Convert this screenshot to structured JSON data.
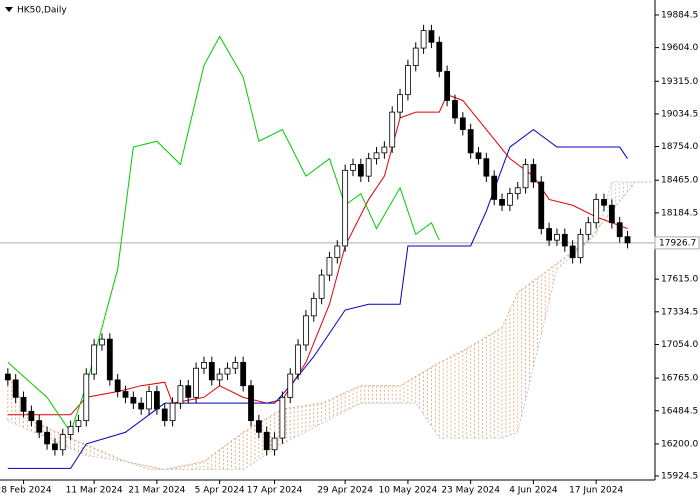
{
  "chart_data": {
    "type": "candlestick",
    "title": "HK50,Daily",
    "ylim": [
      15890,
      20013
    ],
    "yticks": [
      {
        "value": 19884.5,
        "label": "19884.5"
      },
      {
        "value": 19604.0,
        "label": "19604.0"
      },
      {
        "value": 19315.0,
        "label": "19315.0"
      },
      {
        "value": 19034.5,
        "label": "19034.5"
      },
      {
        "value": 18754.0,
        "label": "18754.0"
      },
      {
        "value": 18465.0,
        "label": "18465.0"
      },
      {
        "value": 18184.5,
        "label": "18184.5"
      },
      {
        "value": 17615.0,
        "label": "17615.0"
      },
      {
        "value": 17334.5,
        "label": "17334.5"
      },
      {
        "value": 17054.0,
        "label": "17054.0"
      },
      {
        "value": 16765.0,
        "label": "16765.0"
      },
      {
        "value": 16484.5,
        "label": "16484.5"
      },
      {
        "value": 16200.0,
        "label": "16200.0"
      },
      {
        "value": 15924.5,
        "label": "15924.5"
      }
    ],
    "xlim": [
      -1,
      82.5
    ],
    "xticks": [
      {
        "value": 2,
        "label": "28 Feb 2024"
      },
      {
        "value": 11,
        "label": "11 Mar 2024"
      },
      {
        "value": 19,
        "label": "21 Mar 2024"
      },
      {
        "value": 27,
        "label": "5 Apr 2024"
      },
      {
        "value": 34,
        "label": "17 Apr 2024"
      },
      {
        "value": 43,
        "label": "29 Apr 2024"
      },
      {
        "value": 51,
        "label": "10 May 2024"
      },
      {
        "value": 59,
        "label": "23 May 2024"
      },
      {
        "value": 67,
        "label": "4 Jun 2024"
      },
      {
        "value": 75,
        "label": "17 Jun 2024"
      }
    ],
    "current_price": 17926.7,
    "ohlc": [
      [
        16800,
        16850,
        16700,
        16750
      ],
      [
        16750,
        16800,
        16550,
        16600
      ],
      [
        16600,
        16650,
        16430,
        16480
      ],
      [
        16480,
        16530,
        16350,
        16400
      ],
      [
        16400,
        16450,
        16250,
        16300
      ],
      [
        16300,
        16350,
        16150,
        16200
      ],
      [
        16200,
        16250,
        16100,
        16150
      ],
      [
        16150,
        16330,
        16100,
        16280
      ],
      [
        16280,
        16400,
        16230,
        16350
      ],
      [
        16350,
        16450,
        16300,
        16400
      ],
      [
        16400,
        16850,
        16350,
        16800
      ],
      [
        16800,
        17100,
        16750,
        17050
      ],
      [
        17050,
        17150,
        17000,
        17100
      ],
      [
        17100,
        17150,
        16700,
        16750
      ],
      [
        16750,
        16800,
        16600,
        16650
      ],
      [
        16650,
        16700,
        16550,
        16600
      ],
      [
        16600,
        16650,
        16500,
        16550
      ],
      [
        16550,
        16600,
        16450,
        16500
      ],
      [
        16500,
        16700,
        16450,
        16650
      ],
      [
        16650,
        16700,
        16450,
        16500
      ],
      [
        16500,
        16550,
        16350,
        16400
      ],
      [
        16400,
        16600,
        16350,
        16550
      ],
      [
        16550,
        16750,
        16500,
        16700
      ],
      [
        16700,
        16750,
        16550,
        16600
      ],
      [
        16600,
        16900,
        16550,
        16850
      ],
      [
        16850,
        16950,
        16800,
        16900
      ],
      [
        16900,
        16950,
        16700,
        16750
      ],
      [
        16750,
        16850,
        16700,
        16800
      ],
      [
        16800,
        16900,
        16750,
        16850
      ],
      [
        16850,
        16950,
        16800,
        16900
      ],
      [
        16900,
        16950,
        16650,
        16700
      ],
      [
        16700,
        16750,
        16350,
        16400
      ],
      [
        16400,
        16450,
        16250,
        16300
      ],
      [
        16300,
        16350,
        16100,
        16150
      ],
      [
        16150,
        16300,
        16100,
        16250
      ],
      [
        16250,
        16650,
        16200,
        16600
      ],
      [
        16600,
        16850,
        16550,
        16800
      ],
      [
        16800,
        17100,
        16750,
        17050
      ],
      [
        17050,
        17350,
        17000,
        17300
      ],
      [
        17300,
        17500,
        17250,
        17450
      ],
      [
        17450,
        17700,
        17400,
        17650
      ],
      [
        17650,
        17850,
        17600,
        17800
      ],
      [
        17800,
        17950,
        17750,
        17900
      ],
      [
        17900,
        18600,
        17850,
        18550
      ],
      [
        18550,
        18650,
        18500,
        18600
      ],
      [
        18600,
        18650,
        18450,
        18500
      ],
      [
        18500,
        18700,
        18450,
        18650
      ],
      [
        18650,
        18750,
        18600,
        18700
      ],
      [
        18700,
        18800,
        18650,
        18750
      ],
      [
        18750,
        19100,
        18700,
        19050
      ],
      [
        19050,
        19250,
        19000,
        19200
      ],
      [
        19200,
        19500,
        19150,
        19450
      ],
      [
        19450,
        19650,
        19400,
        19600
      ],
      [
        19600,
        19800,
        19550,
        19750
      ],
      [
        19750,
        19800,
        19600,
        19650
      ],
      [
        19650,
        19700,
        19350,
        19400
      ],
      [
        19400,
        19450,
        19100,
        19150
      ],
      [
        19150,
        19200,
        18950,
        19000
      ],
      [
        19000,
        19050,
        18850,
        18900
      ],
      [
        18900,
        18950,
        18650,
        18700
      ],
      [
        18700,
        18750,
        18600,
        18650
      ],
      [
        18650,
        18700,
        18450,
        18500
      ],
      [
        18500,
        18550,
        18250,
        18300
      ],
      [
        18300,
        18350,
        18200,
        18250
      ],
      [
        18250,
        18400,
        18200,
        18350
      ],
      [
        18350,
        18450,
        18300,
        18400
      ],
      [
        18400,
        18650,
        18350,
        18600
      ],
      [
        18600,
        18650,
        18400,
        18450
      ],
      [
        18450,
        18500,
        18000,
        18050
      ],
      [
        18050,
        18100,
        17900,
        17950
      ],
      [
        17950,
        18050,
        17900,
        18000
      ],
      [
        18000,
        18050,
        17850,
        17900
      ],
      [
        17900,
        17950,
        17750,
        17800
      ],
      [
        17800,
        18050,
        17750,
        18000
      ],
      [
        18000,
        18150,
        17950,
        18100
      ],
      [
        18100,
        18350,
        18050,
        18300
      ],
      [
        18300,
        18350,
        18200,
        18250
      ],
      [
        18250,
        18300,
        18050,
        18100
      ],
      [
        18100,
        18150,
        17930,
        17980
      ],
      [
        17980,
        18030,
        17880,
        17927
      ]
    ],
    "lines": [
      {
        "color": "#e00000",
        "x": [
          0,
          8,
          10,
          14,
          17,
          20,
          21,
          25,
          27,
          30,
          33,
          35,
          38,
          41,
          43,
          46,
          48,
          50,
          52,
          55,
          56,
          58,
          61,
          64,
          67,
          69,
          72,
          75,
          79
        ],
        "values": [
          16450,
          16450,
          16600,
          16650,
          16700,
          16730,
          16550,
          16600,
          16700,
          16600,
          16550,
          16580,
          16900,
          17400,
          17900,
          18300,
          18500,
          19000,
          19050,
          19050,
          19200,
          19150,
          18900,
          18650,
          18500,
          18300,
          18250,
          18150,
          18050
        ]
      },
      {
        "color": "#0000c0",
        "x": [
          0,
          8,
          10,
          15,
          18,
          20,
          34,
          36,
          39,
          43,
          46,
          50,
          51,
          59,
          61,
          64,
          67,
          70,
          78,
          79
        ],
        "values": [
          15990,
          15990,
          16200,
          16300,
          16450,
          16550,
          16550,
          16700,
          16950,
          17350,
          17400,
          17400,
          17900,
          17900,
          18200,
          18750,
          18900,
          18750,
          18750,
          18650
        ]
      },
      {
        "color": "#00cc00",
        "x": [
          0,
          5,
          8,
          10,
          14,
          16,
          19,
          22,
          25,
          27,
          30,
          32,
          35,
          38,
          41,
          43,
          45,
          47,
          50,
          52,
          54,
          55
        ],
        "values": [
          16900,
          16600,
          16300,
          16700,
          17700,
          18750,
          18800,
          18600,
          19450,
          19700,
          19350,
          18800,
          18900,
          18500,
          18650,
          18250,
          18350,
          18050,
          18400,
          18000,
          18100,
          17950
        ]
      }
    ],
    "span_a": {
      "x": [
        0,
        3,
        8,
        15,
        20,
        25,
        30,
        35,
        40,
        45,
        50,
        55,
        58,
        63,
        65,
        70,
        74,
        77,
        80,
        82
      ],
      "values": [
        16800,
        16400,
        16250,
        16050,
        15980,
        16050,
        16300,
        16500,
        16550,
        16700,
        16700,
        16900,
        17000,
        17200,
        17500,
        17750,
        17950,
        18200,
        18450,
        18450
      ]
    },
    "span_b": {
      "x": [
        0,
        10,
        15,
        18,
        30,
        35,
        45,
        52,
        55,
        60,
        63,
        65,
        70,
        75,
        77,
        82
      ],
      "values": [
        16400,
        16100,
        16050,
        15980,
        15980,
        16200,
        16550,
        16550,
        16250,
        16250,
        16250,
        16300,
        17700,
        18000,
        18450,
        18450
      ]
    }
  }
}
